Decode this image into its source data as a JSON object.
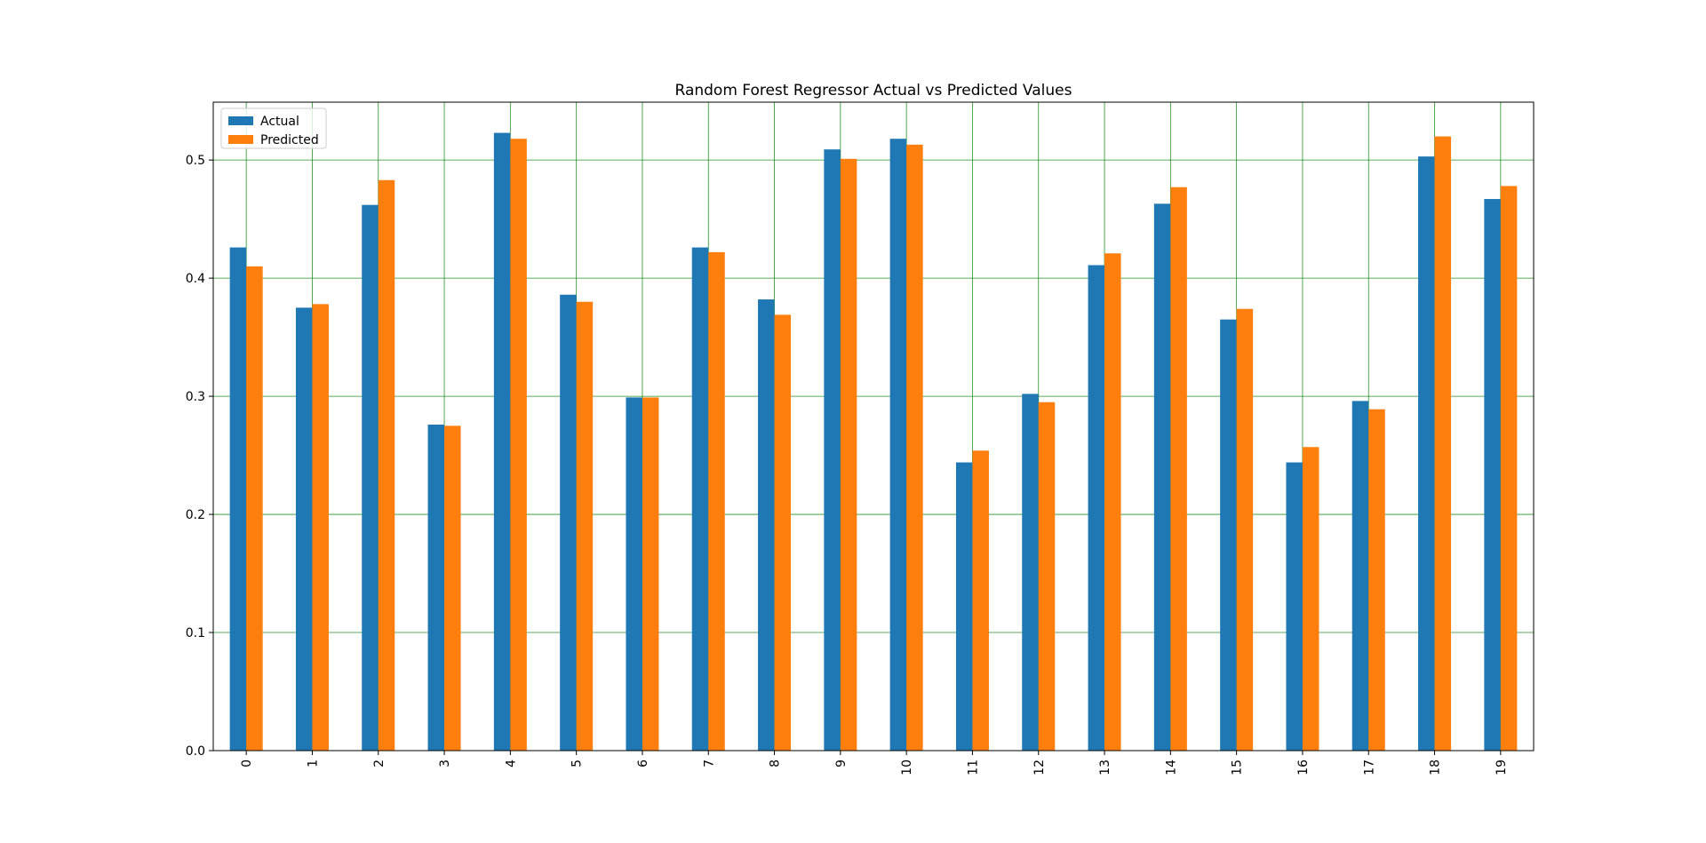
{
  "chart_data": {
    "type": "bar",
    "title": "Random Forest Regressor Actual vs Predicted Values",
    "xlabel": "",
    "ylabel": "",
    "categories": [
      "0",
      "1",
      "2",
      "3",
      "4",
      "5",
      "6",
      "7",
      "8",
      "9",
      "10",
      "11",
      "12",
      "13",
      "14",
      "15",
      "16",
      "17",
      "18",
      "19"
    ],
    "series": [
      {
        "name": "Actual",
        "color": "#1f77b4",
        "values": [
          0.426,
          0.375,
          0.462,
          0.276,
          0.523,
          0.386,
          0.299,
          0.426,
          0.382,
          0.509,
          0.518,
          0.244,
          0.302,
          0.411,
          0.463,
          0.365,
          0.244,
          0.296,
          0.503,
          0.467
        ]
      },
      {
        "name": "Predicted",
        "color": "#ff7f0e",
        "values": [
          0.41,
          0.378,
          0.483,
          0.275,
          0.518,
          0.38,
          0.299,
          0.422,
          0.369,
          0.501,
          0.513,
          0.254,
          0.295,
          0.421,
          0.477,
          0.374,
          0.257,
          0.289,
          0.52,
          0.478
        ]
      }
    ],
    "ylim": [
      0,
      0.549
    ],
    "yticks": [
      "0.0",
      "0.1",
      "0.2",
      "0.3",
      "0.4",
      "0.5"
    ],
    "grid": true,
    "grid_color": "#008000",
    "legend_position": "upper-left"
  }
}
